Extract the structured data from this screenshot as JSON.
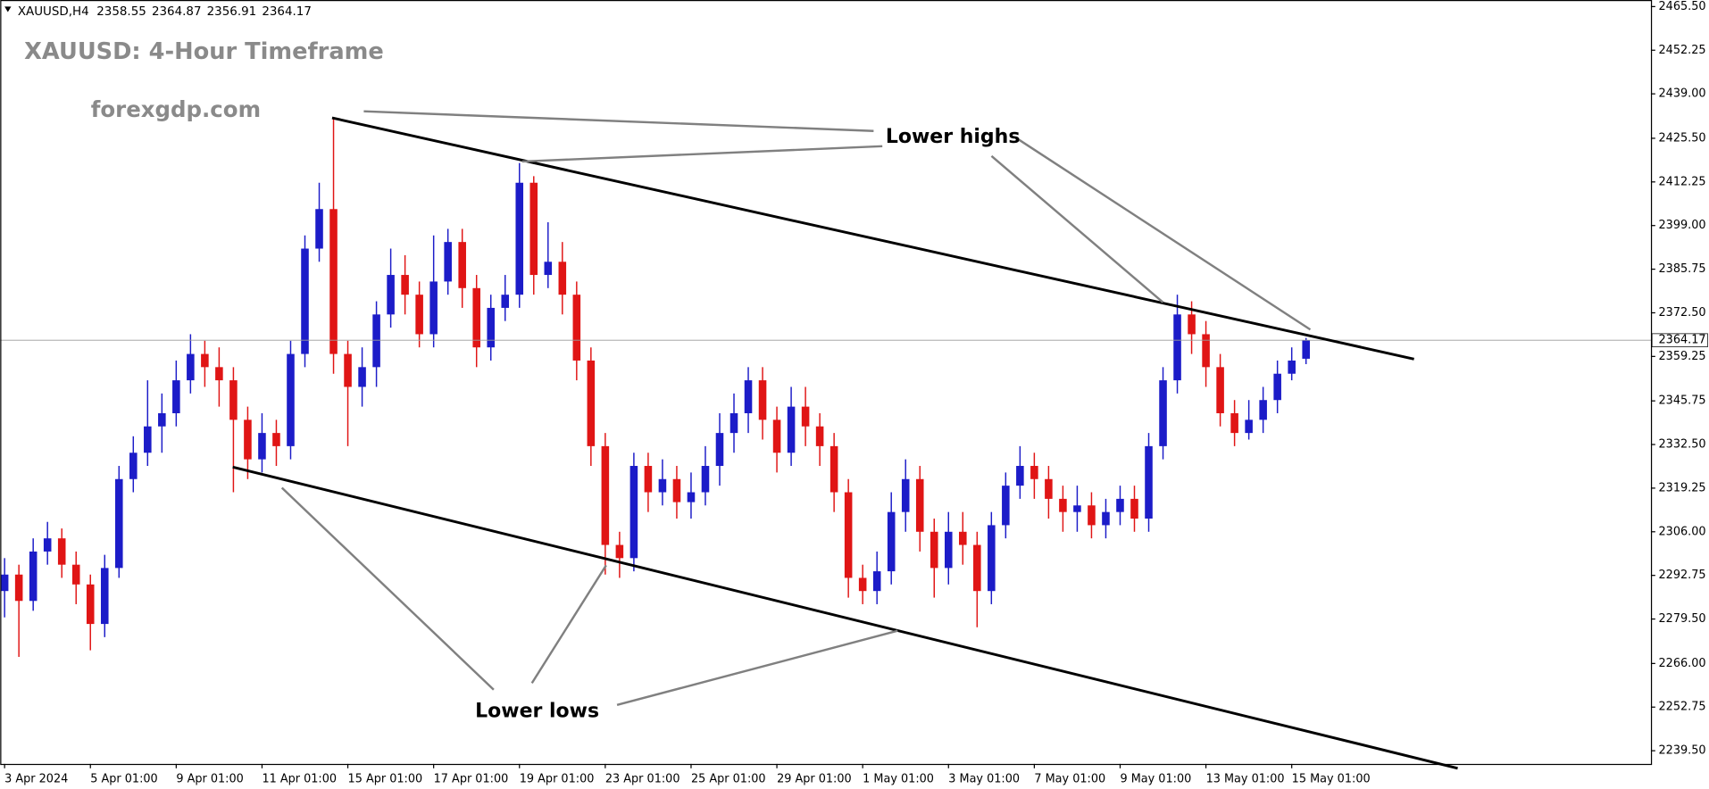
{
  "chart_data": {
    "type": "candlestick",
    "symbol": "XAUUSD,H4",
    "title": "XAUUSD: 4-Hour Timeframe",
    "watermark": "forexgdp.com",
    "annotations": {
      "highs": "Lower highs",
      "lows": "Lower lows"
    },
    "up_color": "#1c1cc8",
    "down_color": "#e01515",
    "ylim": [
      2235.5,
      2467.5
    ],
    "yticks": [
      {
        "value": 2465.5,
        "label": "2465.50"
      },
      {
        "value": 2452.25,
        "label": "2452.25"
      },
      {
        "value": 2439,
        "label": "2439.00"
      },
      {
        "value": 2425.5,
        "label": "2425.50"
      },
      {
        "value": 2412.25,
        "label": "2412.25"
      },
      {
        "value": 2399,
        "label": "2399.00"
      },
      {
        "value": 2385.75,
        "label": "2385.75"
      },
      {
        "value": 2372.5,
        "label": "2372.50"
      },
      {
        "value": 2359.25,
        "label": "2359.25"
      },
      {
        "value": 2345.75,
        "label": "2345.75"
      },
      {
        "value": 2332.5,
        "label": "2332.50"
      },
      {
        "value": 2319.25,
        "label": "2319.25"
      },
      {
        "value": 2306,
        "label": "2306.00"
      },
      {
        "value": 2292.75,
        "label": "2292.75"
      },
      {
        "value": 2279.5,
        "label": "2279.50"
      },
      {
        "value": 2266,
        "label": "2266.00"
      },
      {
        "value": 2252.75,
        "label": "2252.75"
      },
      {
        "value": 2239.5,
        "label": "2239.50"
      }
    ],
    "categories": [
      "3 Apr 2024",
      null,
      null,
      null,
      null,
      null,
      "5 Apr 01:00",
      null,
      null,
      null,
      null,
      null,
      "9 Apr 01:00",
      null,
      null,
      null,
      null,
      null,
      "11 Apr 01:00",
      null,
      null,
      null,
      null,
      null,
      "15 Apr 01:00",
      null,
      null,
      null,
      null,
      null,
      "17 Apr 01:00",
      null,
      null,
      null,
      null,
      null,
      "19 Apr 01:00",
      null,
      null,
      null,
      null,
      null,
      "23 Apr 01:00",
      null,
      null,
      null,
      null,
      null,
      "25 Apr 01:00",
      null,
      null,
      null,
      null,
      null,
      "29 Apr 01:00",
      null,
      null,
      null,
      null,
      null,
      "1 May 01:00",
      null,
      null,
      null,
      null,
      null,
      "3 May 01:00",
      null,
      null,
      null,
      null,
      null,
      "7 May 01:00",
      null,
      null,
      null,
      null,
      null,
      "9 May 01:00",
      null,
      null,
      null,
      null,
      null,
      "13 May 01:00",
      null,
      null,
      null,
      null,
      null,
      "15 May 01:00",
      null
    ],
    "open": [
      2288,
      2293,
      2285,
      2300,
      2304,
      2296,
      2290,
      2278,
      2295,
      2322,
      2330,
      2338,
      2342,
      2352,
      2360,
      2356,
      2352,
      2340,
      2328,
      2336,
      2332,
      2360,
      2392,
      2404,
      2360,
      2350,
      2356,
      2372,
      2384,
      2378,
      2366,
      2382,
      2394,
      2380,
      2362,
      2374,
      2378,
      2412,
      2384,
      2388,
      2378,
      2358,
      2332,
      2302,
      2298,
      2326,
      2318,
      2322,
      2315,
      2318,
      2326,
      2336,
      2342,
      2352,
      2340,
      2330,
      2344,
      2338,
      2332,
      2318,
      2292,
      2288,
      2294,
      2312,
      2322,
      2306,
      2295,
      2306,
      2302,
      2288,
      2308,
      2320,
      2326,
      2322,
      2316,
      2312,
      2314,
      2308,
      2312,
      2316,
      2310,
      2332,
      2352,
      2372,
      2366,
      2356,
      2342,
      2336,
      2340,
      2346,
      2354,
      2358.55
    ],
    "high": [
      2298,
      2296,
      2304,
      2309,
      2307,
      2300,
      2293,
      2299,
      2326,
      2335,
      2352,
      2348,
      2358,
      2366,
      2364,
      2362,
      2356,
      2344,
      2342,
      2340,
      2364,
      2396,
      2412,
      2432,
      2364,
      2362,
      2376,
      2392,
      2390,
      2382,
      2396,
      2398,
      2398,
      2384,
      2378,
      2384,
      2418,
      2414,
      2400,
      2394,
      2382,
      2362,
      2336,
      2306,
      2330,
      2330,
      2328,
      2326,
      2324,
      2332,
      2342,
      2348,
      2356,
      2356,
      2344,
      2350,
      2350,
      2342,
      2336,
      2322,
      2296,
      2300,
      2318,
      2328,
      2326,
      2310,
      2312,
      2312,
      2306,
      2312,
      2324,
      2332,
      2330,
      2326,
      2320,
      2320,
      2318,
      2316,
      2320,
      2320,
      2336,
      2356,
      2378,
      2376,
      2370,
      2360,
      2346,
      2346,
      2350,
      2358,
      2362,
      2364.87
    ],
    "low": [
      2280,
      2268,
      2282,
      2296,
      2292,
      2284,
      2270,
      2274,
      2292,
      2318,
      2326,
      2330,
      2338,
      2348,
      2350,
      2344,
      2318,
      2322,
      2324,
      2326,
      2328,
      2356,
      2388,
      2354,
      2332,
      2344,
      2350,
      2368,
      2372,
      2362,
      2362,
      2378,
      2374,
      2356,
      2358,
      2370,
      2374,
      2378,
      2380,
      2372,
      2352,
      2326,
      2293,
      2292,
      2294,
      2312,
      2314,
      2310,
      2310,
      2314,
      2320,
      2330,
      2336,
      2334,
      2324,
      2326,
      2332,
      2326,
      2312,
      2286,
      2284,
      2284,
      2290,
      2306,
      2300,
      2286,
      2290,
      2296,
      2277,
      2284,
      2304,
      2316,
      2316,
      2310,
      2306,
      2306,
      2304,
      2304,
      2308,
      2306,
      2306,
      2328,
      2348,
      2360,
      2350,
      2338,
      2332,
      2334,
      2336,
      2342,
      2352,
      2356.91
    ],
    "close": [
      2293,
      2285,
      2300,
      2304,
      2296,
      2290,
      2278,
      2295,
      2322,
      2330,
      2338,
      2342,
      2352,
      2360,
      2356,
      2352,
      2340,
      2328,
      2336,
      2332,
      2360,
      2392,
      2404,
      2360,
      2350,
      2356,
      2372,
      2384,
      2378,
      2366,
      2382,
      2394,
      2380,
      2362,
      2374,
      2378,
      2412,
      2384,
      2388,
      2378,
      2358,
      2332,
      2302,
      2298,
      2326,
      2318,
      2322,
      2315,
      2318,
      2326,
      2336,
      2342,
      2352,
      2340,
      2330,
      2344,
      2338,
      2332,
      2318,
      2292,
      2288,
      2294,
      2312,
      2322,
      2306,
      2295,
      2306,
      2302,
      2288,
      2308,
      2320,
      2326,
      2322,
      2316,
      2312,
      2314,
      2308,
      2312,
      2316,
      2310,
      2332,
      2352,
      2372,
      2366,
      2356,
      2342,
      2336,
      2340,
      2346,
      2354,
      2358,
      2364.17
    ]
  }
}
